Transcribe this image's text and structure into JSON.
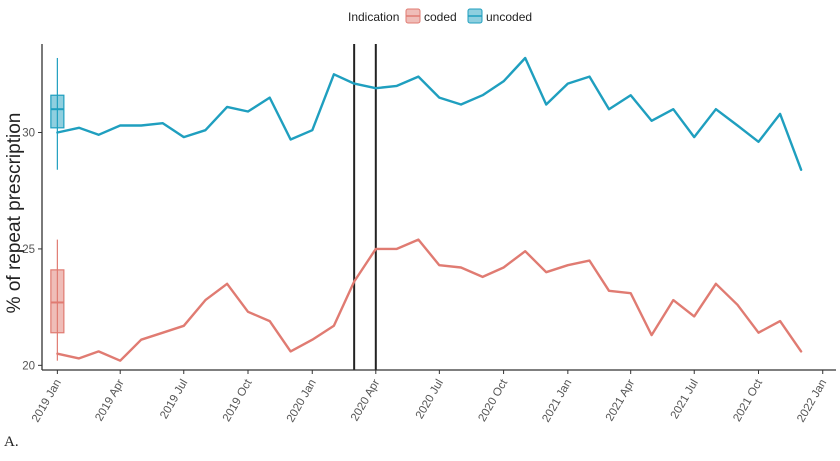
{
  "caption": "A.",
  "chart_data": {
    "type": "line",
    "xlabel": "",
    "ylabel": "% of repeat prescription",
    "ylim": [
      19.8,
      33.8
    ],
    "xlim": [
      "2018-12-10",
      "2022-01-20"
    ],
    "legend": {
      "title": "Indication",
      "position": "top",
      "entries": [
        "coded",
        "uncoded"
      ]
    },
    "y_ticks": [
      20,
      25,
      30
    ],
    "x_ticks": [
      {
        "label": "2019 Jan",
        "date": "2019-01-01"
      },
      {
        "label": "2019 Apr",
        "date": "2019-04-01"
      },
      {
        "label": "2019 Jul",
        "date": "2019-07-01"
      },
      {
        "label": "2019 Oct",
        "date": "2019-10-01"
      },
      {
        "label": "2020 Jan",
        "date": "2020-01-01"
      },
      {
        "label": "2020 Apr",
        "date": "2020-04-01"
      },
      {
        "label": "2020 Jul",
        "date": "2020-07-01"
      },
      {
        "label": "2020 Oct",
        "date": "2020-10-01"
      },
      {
        "label": "2021 Jan",
        "date": "2021-01-01"
      },
      {
        "label": "2021 Apr",
        "date": "2021-04-01"
      },
      {
        "label": "2021 Jul",
        "date": "2021-07-01"
      },
      {
        "label": "2021 Oct",
        "date": "2021-10-01"
      },
      {
        "label": "2022 Jan",
        "date": "2022-01-01"
      }
    ],
    "vlines": [
      "2020-03-01",
      "2020-04-01"
    ],
    "x": [
      "2019-01-01",
      "2019-02-01",
      "2019-03-01",
      "2019-04-01",
      "2019-05-01",
      "2019-06-01",
      "2019-07-01",
      "2019-08-01",
      "2019-09-01",
      "2019-10-01",
      "2019-11-01",
      "2019-12-01",
      "2020-01-01",
      "2020-02-01",
      "2020-03-01",
      "2020-04-01",
      "2020-05-01",
      "2020-06-01",
      "2020-07-01",
      "2020-08-01",
      "2020-09-01",
      "2020-10-01",
      "2020-11-01",
      "2020-12-01",
      "2021-01-01",
      "2021-02-01",
      "2021-03-01",
      "2021-04-01",
      "2021-05-01",
      "2021-06-01",
      "2021-07-01",
      "2021-08-01",
      "2021-09-01",
      "2021-10-01",
      "2021-11-01",
      "2021-12-01"
    ],
    "series": [
      {
        "name": "coded",
        "color": "#e07b72",
        "values": [
          20.5,
          20.3,
          20.6,
          20.2,
          21.1,
          21.4,
          21.7,
          22.8,
          23.5,
          22.3,
          21.9,
          20.6,
          21.1,
          21.7,
          23.6,
          25.0,
          25.0,
          25.4,
          24.3,
          24.2,
          23.8,
          24.2,
          24.9,
          24.0,
          24.3,
          24.5,
          23.2,
          23.1,
          21.3,
          22.8,
          22.1,
          23.5,
          22.6,
          21.4,
          21.9,
          20.6
        ],
        "box": {
          "min": 20.2,
          "q1": 21.4,
          "median": 22.7,
          "q3": 24.1,
          "max": 25.4
        }
      },
      {
        "name": "uncoded",
        "color": "#1f9fbf",
        "values": [
          30.0,
          30.2,
          29.9,
          30.3,
          30.3,
          30.4,
          29.8,
          30.1,
          31.1,
          30.9,
          31.5,
          29.7,
          30.1,
          32.5,
          32.1,
          31.9,
          32.0,
          32.4,
          31.5,
          31.2,
          31.6,
          32.2,
          33.2,
          31.2,
          32.1,
          32.4,
          31.0,
          31.6,
          30.5,
          31.0,
          29.8,
          31.0,
          30.3,
          29.6,
          30.8,
          28.4
        ],
        "box": {
          "min": 28.4,
          "q1": 30.2,
          "median": 31.0,
          "q3": 31.6,
          "max": 33.2
        }
      }
    ]
  }
}
